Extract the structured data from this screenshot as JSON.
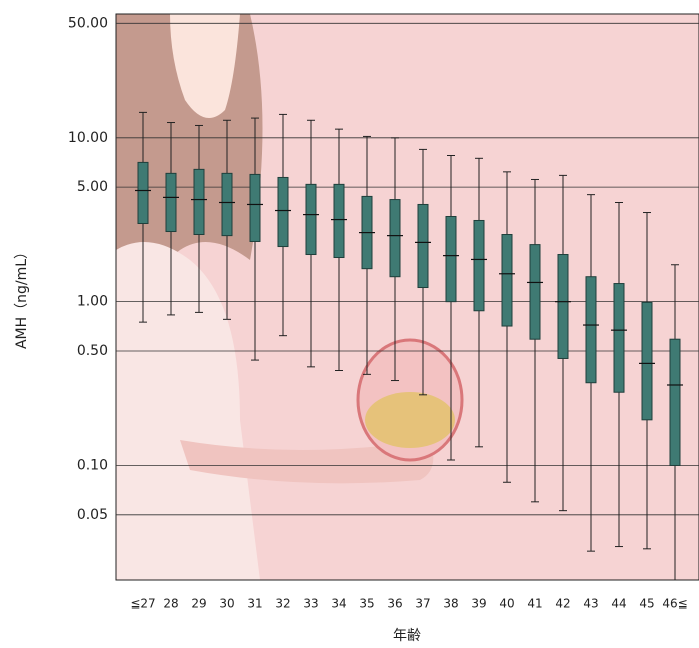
{
  "chart_data": {
    "type": "box",
    "y_label": "AMH（ng/mL）",
    "x_label": "年齢",
    "log_scale": true,
    "grid": true,
    "color": "#3f7a73",
    "ylim": [
      0.02,
      57
    ],
    "yticks": [
      {
        "value": 50,
        "label": "50.00"
      },
      {
        "value": 10,
        "label": "10.00"
      },
      {
        "value": 5,
        "label": "5.00"
      },
      {
        "value": 1,
        "label": "1.00"
      },
      {
        "value": 0.5,
        "label": "0.50"
      },
      {
        "value": 0.1,
        "label": "0.10"
      },
      {
        "value": 0.05,
        "label": "0.05"
      }
    ],
    "categories": [
      "≦27",
      "28",
      "29",
      "30",
      "31",
      "32",
      "33",
      "34",
      "35",
      "36",
      "37",
      "38",
      "39",
      "40",
      "41",
      "42",
      "43",
      "44",
      "45",
      "46≦"
    ],
    "whisker_high": [
      14.3,
      12.4,
      11.9,
      12.8,
      13.2,
      13.9,
      12.8,
      11.3,
      10.2,
      10.0,
      8.5,
      7.8,
      7.5,
      6.2,
      5.57,
      5.9,
      4.5,
      4.03,
      3.5,
      1.68
    ],
    "q3": [
      7.08,
      6.07,
      6.42,
      6.07,
      5.98,
      5.73,
      5.2,
      5.2,
      4.39,
      4.2,
      3.92,
      3.31,
      3.13,
      2.57,
      2.23,
      1.94,
      1.42,
      1.29,
      0.99,
      0.59
    ],
    "median": [
      4.77,
      4.33,
      4.2,
      4.03,
      3.92,
      3.6,
      3.4,
      3.17,
      2.64,
      2.53,
      2.3,
      1.91,
      1.81,
      1.48,
      1.31,
      1.0,
      0.72,
      0.67,
      0.42,
      0.31
    ],
    "q1": [
      3.0,
      2.68,
      2.57,
      2.53,
      2.33,
      2.17,
      1.94,
      1.86,
      1.59,
      1.42,
      1.22,
      1.0,
      0.88,
      0.71,
      0.59,
      0.45,
      0.32,
      0.28,
      0.19,
      0.1
    ],
    "whisker_low": [
      0.75,
      0.83,
      0.86,
      0.78,
      0.44,
      0.62,
      0.4,
      0.38,
      0.36,
      0.33,
      0.27,
      0.108,
      0.13,
      0.079,
      0.06,
      0.053,
      0.03,
      0.032,
      0.031,
      0.02
    ]
  }
}
